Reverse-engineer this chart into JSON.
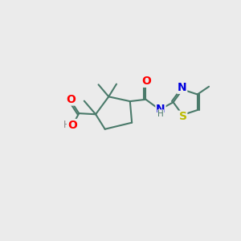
{
  "bg": "#ebebeb",
  "bc": "#4a7a6a",
  "bw": 1.5,
  "oc": "#ff0000",
  "nc": "#0000dd",
  "sc": "#bbbb00",
  "hc": "#888888",
  "fs": 8.5,
  "xlim": [
    0,
    10
  ],
  "ylim": [
    0,
    10
  ]
}
